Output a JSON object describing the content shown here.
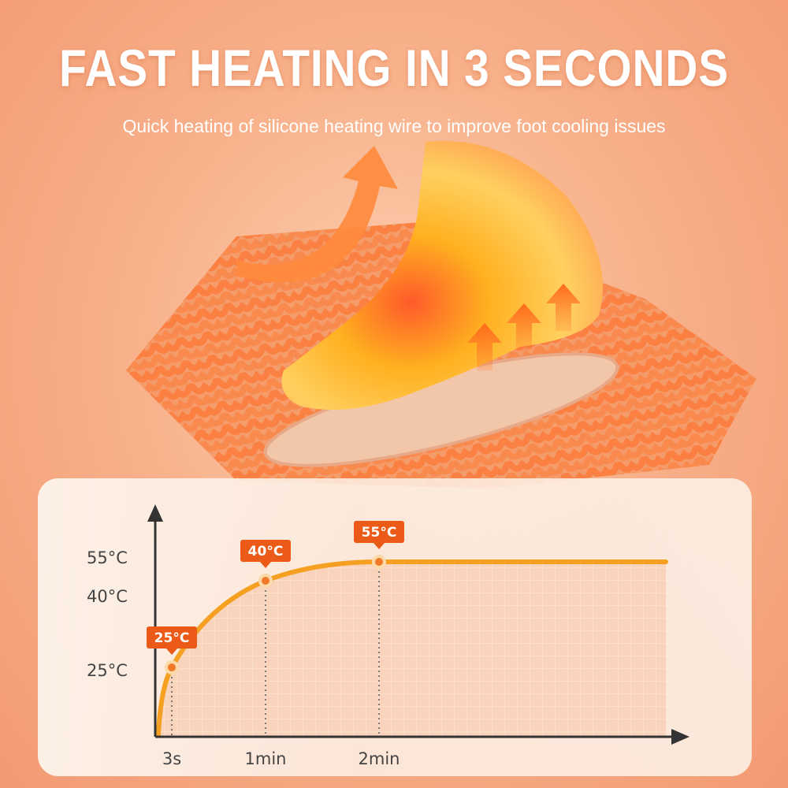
{
  "header": {
    "title": "FAST HEATING IN 3 SECONDS",
    "subtitle": "Quick heating of silicone heating wire to improve foot cooling issues"
  },
  "colors": {
    "accent": "#f5a020",
    "tag": "#ec5a18",
    "background": "#f8b28c"
  },
  "chart_data": {
    "type": "line",
    "title": "",
    "xlabel": "",
    "ylabel": "",
    "x_ticks": [
      "3s",
      "1min",
      "2min"
    ],
    "y_ticks": [
      "25°C",
      "40°C",
      "55°C"
    ],
    "points": [
      {
        "x": "3s",
        "y": 25,
        "label": "25°C"
      },
      {
        "x": "1min",
        "y": 40,
        "label": "40°C"
      },
      {
        "x": "2min",
        "y": 55,
        "label": "55°C"
      }
    ],
    "plateau": 55,
    "grid": true
  }
}
